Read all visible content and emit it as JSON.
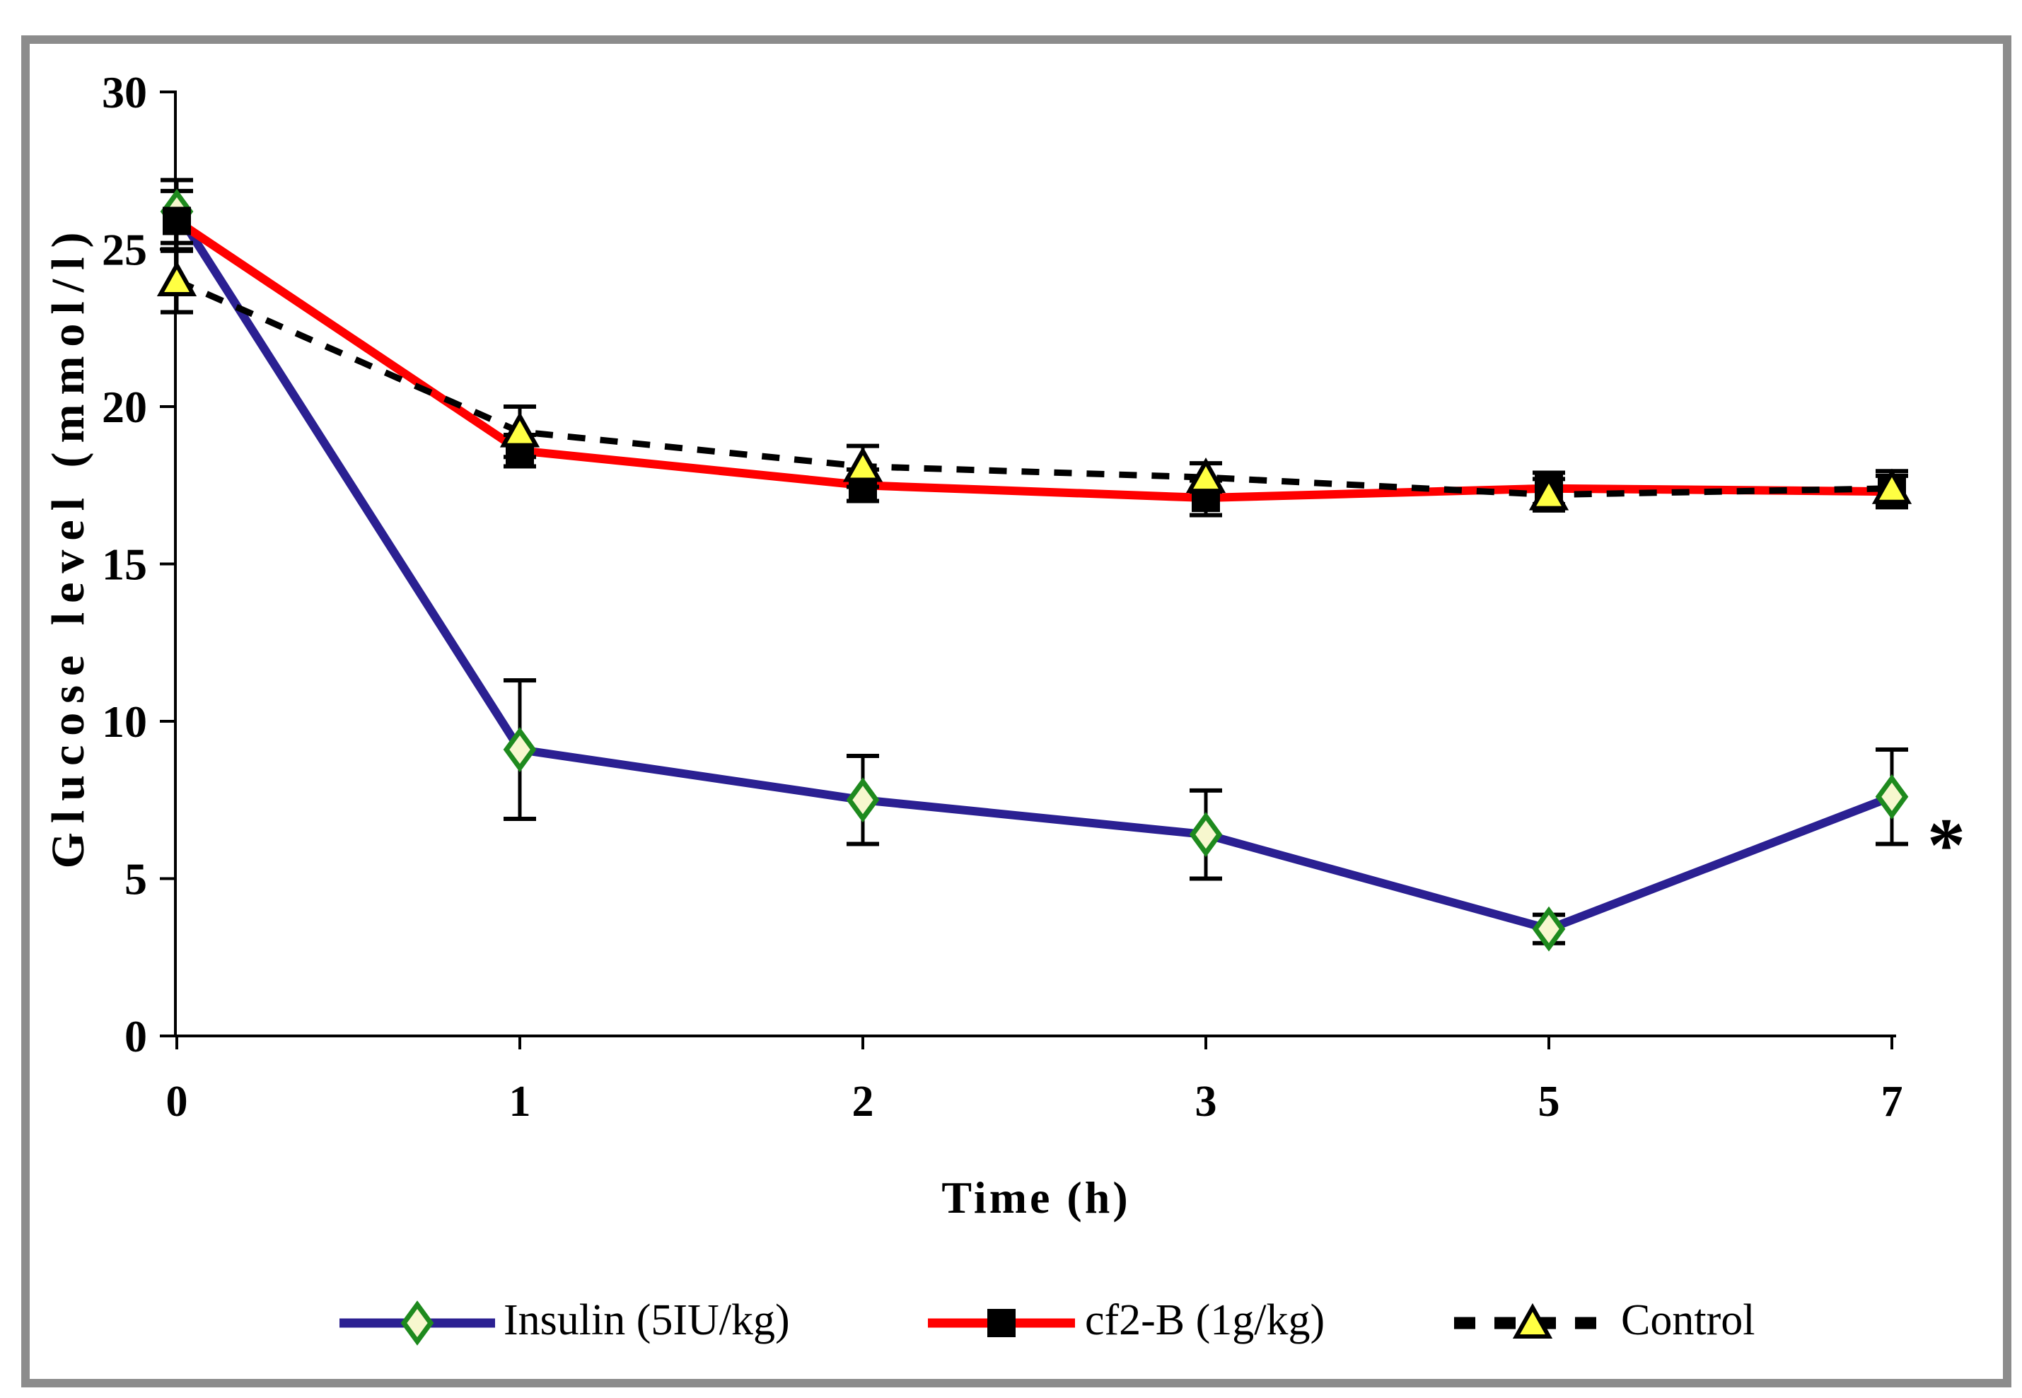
{
  "frame": {
    "border_color": "#8c8c8c",
    "background": "#ffffff"
  },
  "chart_data": {
    "type": "line",
    "title": "",
    "xlabel": "Time (h)",
    "ylabel": "Glucose level (mmol/l)",
    "categories": [
      "0",
      "1",
      "2",
      "3",
      "5",
      "7"
    ],
    "ylim": [
      0,
      30
    ],
    "yticks": [
      0,
      5,
      10,
      15,
      20,
      25,
      30
    ],
    "grid": false,
    "legend_position": "bottom",
    "axis_color": "#000000",
    "series": [
      {
        "name": "Insulin (5IU/kg)",
        "line_style": "solid",
        "color": "#2B2092",
        "marker": "diamond",
        "marker_fill": "#F7F7CE",
        "marker_stroke": "#1E8A1E",
        "values": [
          26.2,
          9.1,
          7.5,
          6.4,
          3.4,
          7.6
        ],
        "errors": [
          1.0,
          2.2,
          1.4,
          1.4,
          0.45,
          1.5
        ]
      },
      {
        "name": "cf2-B (1g/kg)",
        "line_style": "solid",
        "color": "#FF0000",
        "marker": "square",
        "marker_fill": "#000000",
        "marker_stroke": "#000000",
        "values": [
          25.9,
          18.6,
          17.5,
          17.1,
          17.4,
          17.3
        ],
        "errors": [
          0.95,
          0.5,
          0.5,
          0.55,
          0.5,
          0.5
        ]
      },
      {
        "name": "Control",
        "line_style": "dashed",
        "color": "#000000",
        "marker": "triangle-up",
        "marker_fill": "#FFFF42",
        "marker_stroke": "#000000",
        "values": [
          24.0,
          19.2,
          18.1,
          17.75,
          17.2,
          17.4
        ],
        "errors": [
          1.0,
          0.8,
          0.65,
          0.45,
          0.5,
          0.55
        ]
      }
    ],
    "annotations": [
      {
        "text": "*",
        "y_value": 6.2,
        "position": "right-of-last-insulin-point"
      }
    ]
  }
}
